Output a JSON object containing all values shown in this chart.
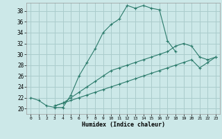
{
  "xlabel": "Humidex (Indice chaleur)",
  "ylabel": "",
  "bg_color": "#cce8e8",
  "grid_color": "#aacccc",
  "line_color": "#2a7a6a",
  "xlim": [
    -0.5,
    23.5
  ],
  "ylim": [
    19,
    39.5
  ],
  "xticks": [
    0,
    1,
    2,
    3,
    4,
    5,
    6,
    7,
    8,
    9,
    10,
    11,
    12,
    13,
    14,
    15,
    16,
    17,
    18,
    19,
    20,
    21,
    22,
    23
  ],
  "yticks": [
    20,
    22,
    24,
    26,
    28,
    30,
    32,
    34,
    36,
    38
  ],
  "line1_x": [
    0,
    1,
    2,
    3,
    4,
    5,
    6,
    7,
    8,
    9,
    10,
    11,
    12,
    13,
    14,
    15,
    16,
    17,
    18
  ],
  "line1_y": [
    22,
    21.5,
    20.5,
    20.2,
    20.2,
    22.5,
    26,
    28.5,
    31,
    34,
    35.5,
    36.5,
    39,
    38.5,
    39,
    38.5,
    38.2,
    32.5,
    30.5
  ],
  "line2_x": [
    3,
    4,
    5,
    6,
    7,
    8,
    9,
    10,
    11,
    12,
    13,
    14,
    15,
    16,
    17,
    18,
    19,
    20,
    21,
    22,
    23
  ],
  "line2_y": [
    20.5,
    21.0,
    22.0,
    23.0,
    24.0,
    25.0,
    26.0,
    27.0,
    27.5,
    28.0,
    28.5,
    29.0,
    29.5,
    30.0,
    30.5,
    31.5,
    32.0,
    31.5,
    29.5,
    29.0,
    29.5
  ],
  "line3_x": [
    3,
    4,
    5,
    6,
    7,
    8,
    9,
    10,
    11,
    12,
    13,
    14,
    15,
    16,
    17,
    18,
    19,
    20,
    21,
    22,
    23
  ],
  "line3_y": [
    20.5,
    21.0,
    21.5,
    22.0,
    22.5,
    23.0,
    23.5,
    24.0,
    24.5,
    25.0,
    25.5,
    26.0,
    26.5,
    27.0,
    27.5,
    28.0,
    28.5,
    29.0,
    27.5,
    28.5,
    29.5
  ]
}
